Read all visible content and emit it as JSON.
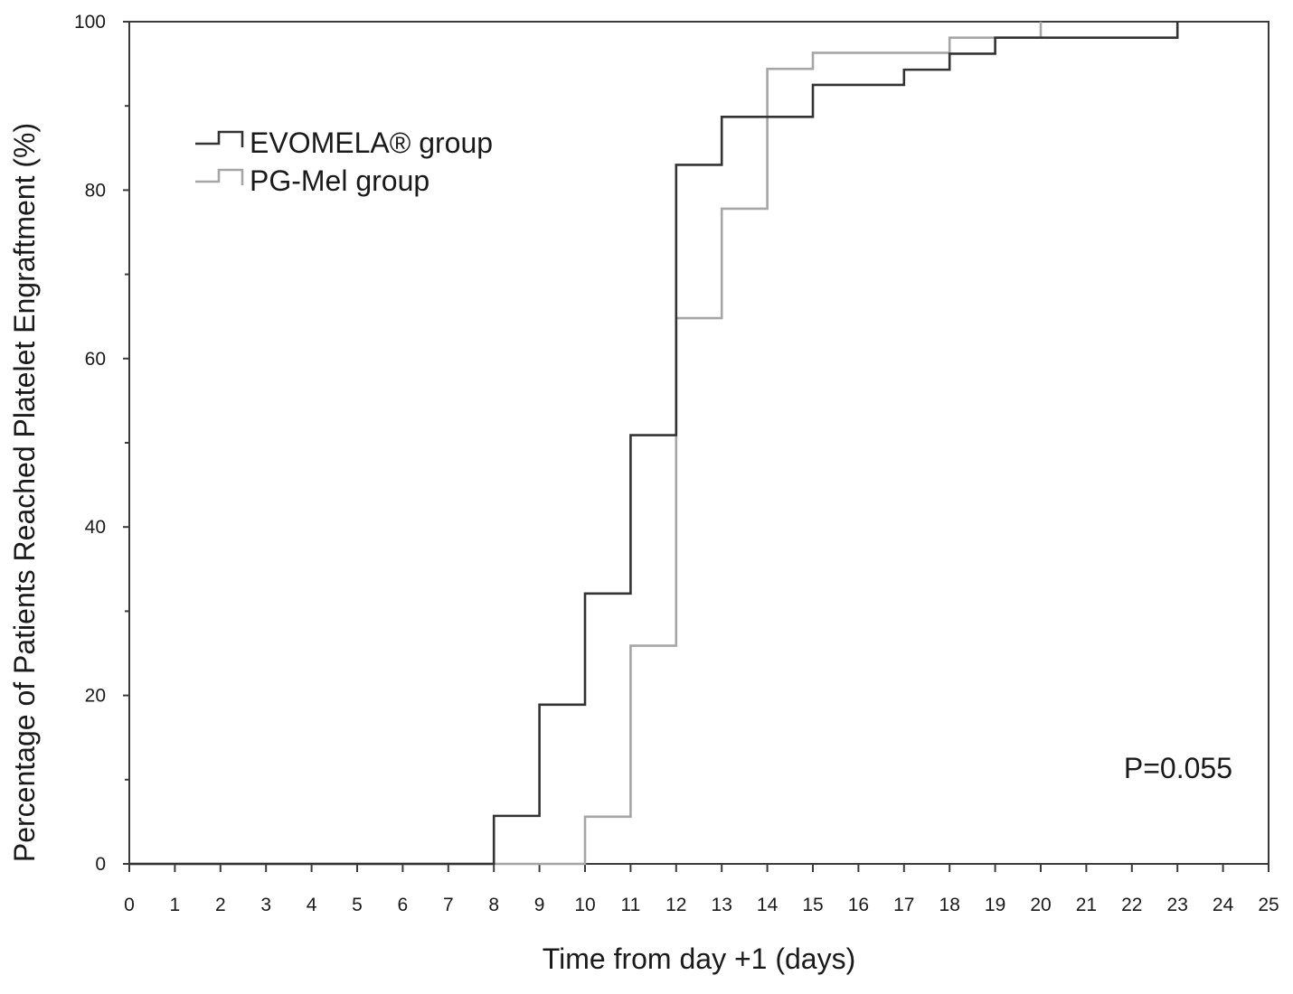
{
  "chart_data": {
    "type": "line",
    "step": true,
    "title": "",
    "xlabel": "Time from day +1 (days)",
    "ylabel": "Percentage of Patients Reached Platelet Engraftment (%)",
    "xlim": [
      0,
      25
    ],
    "ylim": [
      0,
      100
    ],
    "x_ticks": [
      0,
      1,
      2,
      3,
      4,
      5,
      6,
      7,
      8,
      9,
      10,
      11,
      12,
      13,
      14,
      15,
      16,
      17,
      18,
      19,
      20,
      21,
      22,
      23,
      24,
      25
    ],
    "x_tick_labels": [
      "0",
      "1",
      "2",
      "3",
      "4",
      "5",
      "6",
      "7",
      "8",
      "9",
      "10",
      "11",
      "12",
      "13",
      "14",
      "15",
      "16",
      "17",
      "18",
      "19",
      "20",
      "21",
      "22",
      "23",
      "24",
      "25"
    ],
    "y_ticks": [
      0,
      20,
      40,
      60,
      80,
      100
    ],
    "y_tick_labels": [
      "0",
      "20",
      "40",
      "60",
      "80",
      "100"
    ],
    "y_minor_ticks": [
      10,
      30,
      50,
      70,
      90
    ],
    "grid": false,
    "legend_position": "top-left",
    "annotation": "P=0.055",
    "series": [
      {
        "name": "EVOMELA® group",
        "color": "#333333",
        "x": [
          0,
          8,
          9,
          10,
          11,
          12,
          13,
          15,
          17,
          18,
          19,
          23
        ],
        "y": [
          0,
          5.7,
          18.9,
          32.1,
          50.9,
          83.0,
          88.7,
          92.5,
          94.3,
          96.2,
          98.1,
          100
        ]
      },
      {
        "name": "PG-Mel group",
        "color": "#a6a6a6",
        "x": [
          0,
          10,
          11,
          12,
          13,
          14,
          15,
          18,
          20
        ],
        "y": [
          0,
          5.6,
          25.9,
          64.8,
          77.8,
          94.4,
          96.3,
          98.1,
          100
        ]
      }
    ]
  }
}
